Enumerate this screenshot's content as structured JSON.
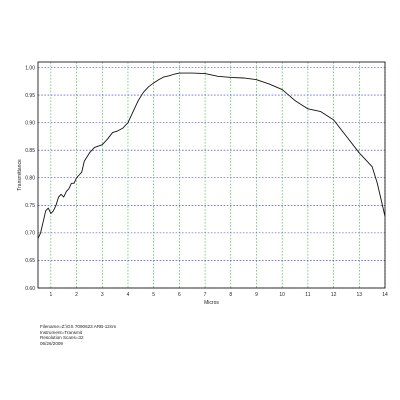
{
  "info_lines": [
    "Filename=Z:\\GS 7090623 ARB-12nm",
    "Instrument=Transmit",
    "Resolution   Scans=32",
    "06/26/2009"
  ],
  "colors": {
    "curve": "#111111",
    "grid_vertical": "#2bb52b",
    "grid_horizontal": "#2b2bd6",
    "frame": "#000000"
  },
  "chart_data": {
    "type": "line",
    "title": "",
    "xlabel": "Micros",
    "ylabel": "Transmittance",
    "xlim": [
      0.5,
      14
    ],
    "ylim": [
      0.6,
      1.01
    ],
    "xticks": [
      "1",
      "2",
      "3",
      "4",
      "5",
      "6",
      "7",
      "8",
      "9",
      "10",
      "11",
      "12",
      "13",
      "14"
    ],
    "yticks": [
      "0.60",
      "0.65",
      "0.70",
      "0.75",
      "0.80",
      "0.85",
      "0.90",
      "0.95",
      "1.00"
    ],
    "grid": true,
    "series": [
      {
        "x": [
          0.5,
          0.6,
          0.7,
          0.8,
          0.9,
          1.0,
          1.1,
          1.2,
          1.3,
          1.4,
          1.5,
          1.6,
          1.7,
          1.8,
          1.9,
          2.0,
          2.1,
          2.2,
          2.3,
          2.5,
          2.7,
          3.0,
          3.2,
          3.4,
          3.6,
          3.8,
          4.0,
          4.2,
          4.4,
          4.6,
          4.8,
          5.0,
          5.2,
          5.4,
          5.6,
          5.8,
          6.0,
          6.5,
          7.0,
          7.5,
          8.0,
          8.5,
          9.0,
          9.5,
          10.0,
          10.5,
          11.0,
          11.5,
          12.0,
          12.5,
          13.0,
          13.5,
          13.7,
          14.0
        ],
        "y": [
          0.69,
          0.7,
          0.72,
          0.74,
          0.745,
          0.735,
          0.74,
          0.75,
          0.765,
          0.77,
          0.765,
          0.775,
          0.78,
          0.79,
          0.79,
          0.8,
          0.805,
          0.81,
          0.83,
          0.845,
          0.855,
          0.86,
          0.87,
          0.882,
          0.885,
          0.89,
          0.9,
          0.92,
          0.94,
          0.955,
          0.965,
          0.972,
          0.978,
          0.983,
          0.985,
          0.988,
          0.99,
          0.99,
          0.989,
          0.984,
          0.982,
          0.981,
          0.978,
          0.97,
          0.96,
          0.94,
          0.925,
          0.92,
          0.905,
          0.875,
          0.845,
          0.82,
          0.79,
          0.73
        ]
      }
    ]
  }
}
